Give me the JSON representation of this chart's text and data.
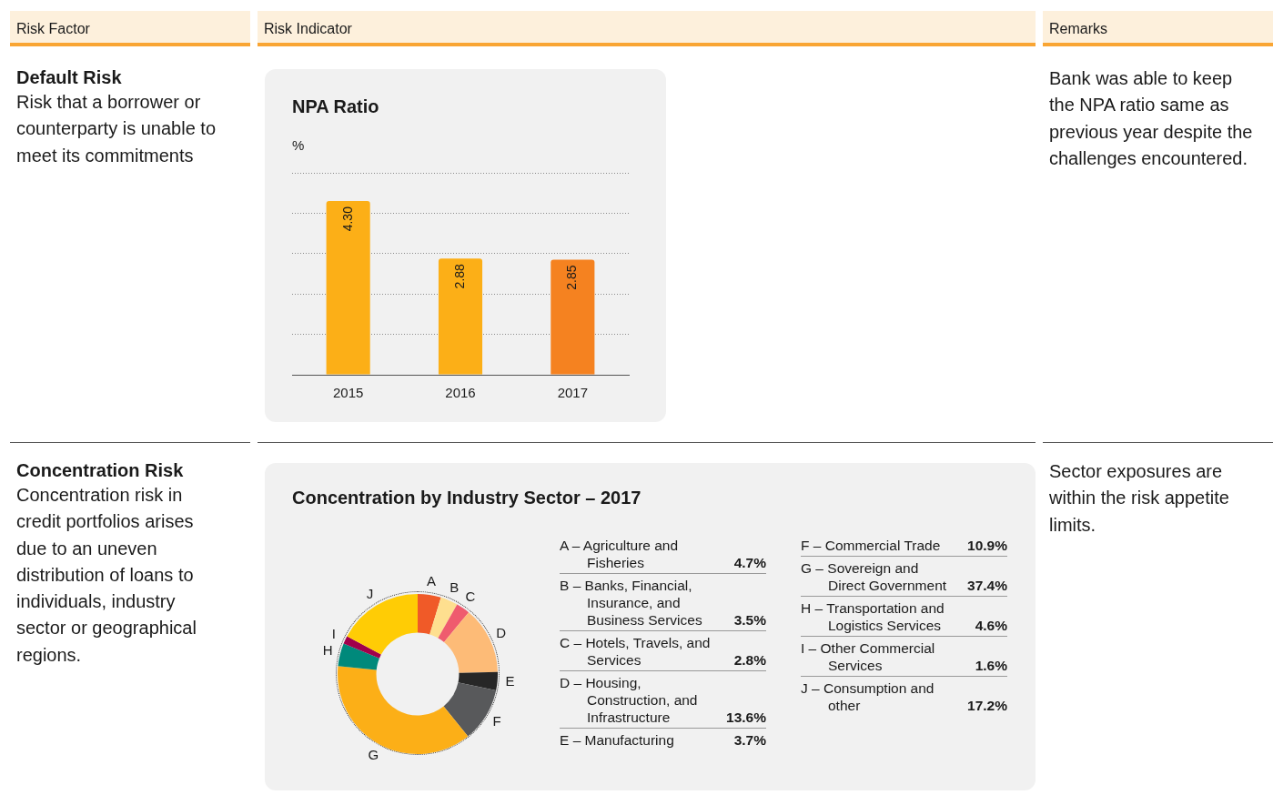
{
  "chart_data": [
    {
      "type": "other",
      "annotations": [
        "Risk Factor",
        "Risk Indicator",
        "Remarks"
      ]
    },
    {
      "type": "other",
      "title": "Default Risk",
      "annotations": [
        "Risk that a borrower or counterparty is unable to meet its commitments",
        "Bank was able to keep the NPA ratio same as previous year despite the challenges encountered."
      ]
    },
    {
      "type": "bar",
      "title": "NPA Ratio",
      "ylabel": "%",
      "categories": [
        "2015",
        "2016",
        "2017"
      ],
      "values": [
        4.3,
        2.88,
        2.85
      ],
      "colors": [
        "#fcaf17",
        "#fcaf17",
        "#f58220"
      ],
      "value_labels": [
        "4.30",
        "2.88",
        "2.85"
      ],
      "ylim": [
        0,
        5
      ],
      "yticks": [
        {
          "value": 0,
          "label": null
        },
        {
          "value": 1,
          "label": null
        },
        {
          "value": 2,
          "label": null
        },
        {
          "value": 3,
          "label": null
        },
        {
          "value": 4,
          "label": null
        },
        {
          "value": 5,
          "label": null
        }
      ],
      "grid": "y",
      "tick_labels": "x",
      "legend": false
    },
    {
      "type": "other",
      "title": "Concentration Risk",
      "annotations": [
        "Concentration risk in credit portfolios arises due to an uneven distribution of loans to individuals, industry sector or geographical regions.",
        "Sector exposures are within the risk appetite limits."
      ]
    },
    {
      "type": "donut",
      "title": "Concentration by Industry Sector – 2017",
      "categories": [
        "A",
        "B",
        "C",
        "D",
        "E",
        "F",
        "G",
        "H",
        "I",
        "J"
      ],
      "values": [
        4.7,
        3.5,
        2.8,
        13.6,
        3.7,
        10.9,
        37.4,
        4.6,
        1.6,
        17.2
      ],
      "colors": [
        "#f05a28",
        "#fedf8f",
        "#ef5b6e",
        "#fdbb77",
        "#272727",
        "#58595b",
        "#fcaf17",
        "#00897b",
        "#a1004b",
        "#ffcc05"
      ],
      "legend": false
    },
    {
      "type": "other",
      "annotations": [
        "A – Agriculture and Fisheries",
        "4.7%",
        "B – Banks, Financial, Insurance, and Business Services",
        "3.5%",
        "C – Hotels, Travels, and Services",
        "2.8%",
        "D – Housing, Construction, and Infrastructure",
        "13.6%",
        "E – Manufacturing",
        "3.7%",
        "F – Commercial Trade",
        "10.9%",
        "G – Sovereign and Direct Government",
        "37.4%",
        "H – Transportation and Logistics Services",
        "4.6%",
        "I – Other Commercial Services",
        "1.6%",
        "J – Consumption and other",
        "17.2%"
      ]
    }
  ]
}
